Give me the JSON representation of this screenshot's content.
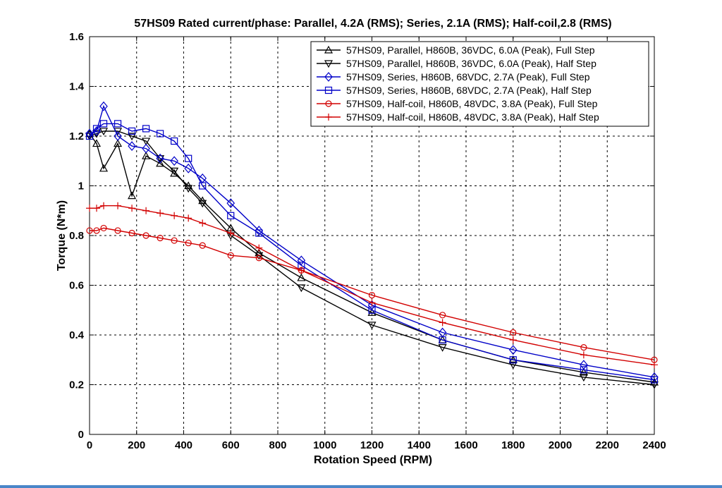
{
  "chart_data": {
    "type": "line",
    "title": "57HS09 Rated current/phase: Parallel, 4.2A (RMS); Series, 2.1A (RMS); Half-coil,2.8 (RMS)",
    "xlabel": "Rotation Speed (RPM)",
    "ylabel": "Torque (N*m)",
    "xlim": [
      0,
      2400
    ],
    "ylim": [
      0,
      1.6
    ],
    "xticks": [
      0,
      200,
      400,
      600,
      800,
      1000,
      1200,
      1400,
      1600,
      1800,
      2000,
      2200,
      2400
    ],
    "yticks": [
      0,
      0.2,
      0.4,
      0.6,
      0.8,
      1,
      1.2,
      1.4,
      1.6
    ],
    "xtick_labels": [
      "0",
      "200",
      "400",
      "600",
      "800",
      "1000",
      "1200",
      "1400",
      "1600",
      "1800",
      "2000",
      "2200",
      "2400"
    ],
    "ytick_labels": [
      "0",
      "0.2",
      "0.4",
      "0.6",
      "0.8",
      "1",
      "1.2",
      "1.4",
      "1.6"
    ],
    "grid": true,
    "legend_position": "top-right",
    "series": [
      {
        "name": "57HS09, Parallel, H860B, 36VDC, 6.0A (Peak), Full Step",
        "color": "#000000",
        "marker": "triangle-up",
        "x": [
          0,
          30,
          60,
          120,
          180,
          240,
          300,
          360,
          420,
          480,
          600,
          720,
          900,
          1200,
          1500,
          1800,
          2100,
          2400
        ],
        "y": [
          1.21,
          1.17,
          1.07,
          1.17,
          0.96,
          1.12,
          1.09,
          1.05,
          1.0,
          0.94,
          0.83,
          0.73,
          0.63,
          0.49,
          0.38,
          0.3,
          0.25,
          0.21
        ]
      },
      {
        "name": "57HS09, Parallel, H860B, 36VDC, 6.0A (Peak), Half Step",
        "color": "#000000",
        "marker": "triangle-down",
        "x": [
          0,
          30,
          60,
          120,
          180,
          240,
          300,
          360,
          420,
          480,
          600,
          720,
          900,
          1200,
          1500,
          1800,
          2100,
          2400
        ],
        "y": [
          1.2,
          1.21,
          1.22,
          1.22,
          1.2,
          1.18,
          1.11,
          1.06,
          0.99,
          0.93,
          0.8,
          0.72,
          0.59,
          0.44,
          0.35,
          0.28,
          0.23,
          0.2
        ]
      },
      {
        "name": "57HS09, Series, H860B, 68VDC, 2.7A (Peak), Full Step",
        "color": "#0000c8",
        "marker": "diamond",
        "x": [
          0,
          30,
          60,
          120,
          180,
          240,
          300,
          360,
          420,
          480,
          600,
          720,
          900,
          1200,
          1500,
          1800,
          2100,
          2400
        ],
        "y": [
          1.21,
          1.22,
          1.32,
          1.2,
          1.16,
          1.15,
          1.11,
          1.1,
          1.07,
          1.03,
          0.93,
          0.82,
          0.7,
          0.52,
          0.41,
          0.34,
          0.28,
          0.23
        ]
      },
      {
        "name": "57HS09, Series, H860B, 68VDC, 2.7A (Peak), Half Step",
        "color": "#0000c8",
        "marker": "square",
        "x": [
          0,
          30,
          60,
          120,
          180,
          240,
          300,
          360,
          420,
          480,
          600,
          720,
          900,
          1200,
          1500,
          1800,
          2100,
          2400
        ],
        "y": [
          1.2,
          1.23,
          1.25,
          1.25,
          1.22,
          1.23,
          1.21,
          1.18,
          1.11,
          1.0,
          0.88,
          0.81,
          0.68,
          0.5,
          0.38,
          0.3,
          0.26,
          0.22
        ]
      },
      {
        "name": "57HS09, Half-coil, H860B, 48VDC, 3.8A (Peak), Full Step",
        "color": "#d20000",
        "marker": "circle",
        "x": [
          0,
          30,
          60,
          120,
          180,
          240,
          300,
          360,
          420,
          480,
          600,
          720,
          900,
          1200,
          1500,
          1800,
          2100,
          2400
        ],
        "y": [
          0.82,
          0.82,
          0.83,
          0.82,
          0.81,
          0.8,
          0.79,
          0.78,
          0.77,
          0.76,
          0.72,
          0.71,
          0.66,
          0.56,
          0.48,
          0.41,
          0.35,
          0.3
        ]
      },
      {
        "name": "57HS09, Half-coil, H860B, 48VDC, 3.8A (Peak), Half Step",
        "color": "#d20000",
        "marker": "plus",
        "x": [
          0,
          30,
          60,
          120,
          180,
          240,
          300,
          360,
          420,
          480,
          600,
          720,
          900,
          1200,
          1500,
          1800,
          2100,
          2400
        ],
        "y": [
          0.91,
          0.91,
          0.92,
          0.92,
          0.91,
          0.9,
          0.89,
          0.88,
          0.87,
          0.85,
          0.81,
          0.75,
          0.66,
          0.53,
          0.45,
          0.38,
          0.32,
          0.28
        ]
      }
    ]
  }
}
